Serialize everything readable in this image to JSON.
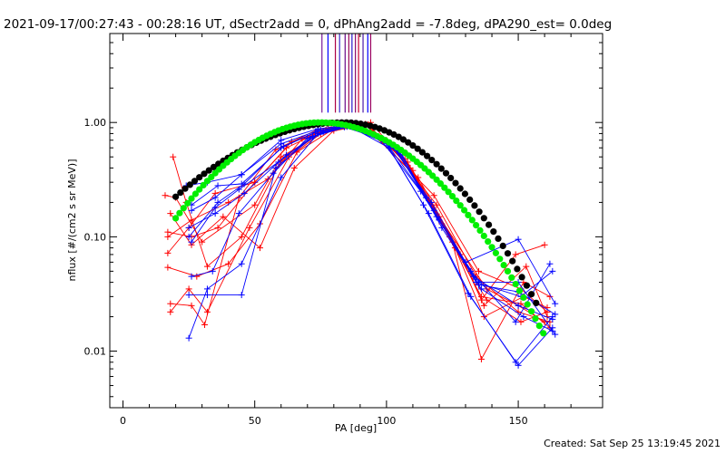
{
  "chart_data": {
    "type": "scatter",
    "title": "2021-09-17/00:27:43 - 00:28:16 UT, dSectr2add = 0, dPhAng2add = -7.8deg, dPA290_est=  0.0deg",
    "xlabel": "PA [deg]",
    "ylabel": "nflux [#/(cm2 s sr MeV)]",
    "xlim": [
      -5,
      182
    ],
    "ylim": [
      0.0032,
      6.0
    ],
    "yscale": "log",
    "x_ticks": [
      0,
      50,
      100,
      150
    ],
    "x_tick_labels": [
      "0",
      "50",
      "100",
      "150"
    ],
    "y_ticks": [
      0.01,
      0.1,
      1.0
    ],
    "y_tick_labels": [
      "0.01",
      "0.10",
      "1.00"
    ],
    "grid": false,
    "footer": "Created: Sat Sep 25 13:19:45 2021",
    "colors": {
      "red": "#ff0000",
      "blue": "#0000ff",
      "black": "#000000",
      "green": "#00ee00",
      "purple": "#8a0a6e"
    },
    "vertical_lines": [
      {
        "x": 75.5,
        "color": "#7a1a9a"
      },
      {
        "x": 77.8,
        "color": "#0000ff"
      },
      {
        "x": 80.6,
        "color": "#aa0044"
      },
      {
        "x": 82.2,
        "color": "#3a2aca"
      },
      {
        "x": 84.3,
        "color": "#6a0a8a"
      },
      {
        "x": 85.7,
        "color": "#9a0a5a"
      },
      {
        "x": 86.9,
        "color": "#2a1aca"
      },
      {
        "x": 88.2,
        "color": "#8a0a6a"
      },
      {
        "x": 89.4,
        "color": "#ca0030"
      },
      {
        "x": 91.1,
        "color": "#4a1aaa"
      },
      {
        "x": 92.9,
        "color": "#0000ff"
      },
      {
        "x": 94.0,
        "color": "#9a0060"
      }
    ],
    "series": [
      {
        "color": "red",
        "points": [
          [
            16,
            0.23
          ],
          [
            20,
            0.22
          ],
          [
            30,
            0.09
          ],
          [
            50,
            0.19
          ],
          [
            60,
            0.5
          ],
          [
            75,
            0.8
          ],
          [
            88,
            0.92
          ],
          [
            95,
            0.8
          ],
          [
            118,
            0.23
          ],
          [
            135,
            0.05
          ],
          [
            151,
            0.035
          ],
          [
            161,
            0.022
          ]
        ]
      },
      {
        "color": "red",
        "points": [
          [
            17,
            0.072
          ],
          [
            25,
            0.12
          ],
          [
            35,
            0.24
          ],
          [
            50,
            0.3
          ],
          [
            62,
            0.6
          ],
          [
            78,
            0.9
          ],
          [
            90,
            0.96
          ],
          [
            105,
            0.55
          ],
          [
            120,
            0.15
          ],
          [
            138,
            0.035
          ],
          [
            150,
            0.025
          ],
          [
            160,
            0.018
          ]
        ]
      },
      {
        "color": "red",
        "points": [
          [
            18,
            0.16
          ],
          [
            26,
            0.085
          ],
          [
            38,
            0.15
          ],
          [
            52,
            0.08
          ],
          [
            65,
            0.4
          ],
          [
            80,
            0.85
          ],
          [
            92,
            0.95
          ],
          [
            108,
            0.45
          ],
          [
            125,
            0.09
          ],
          [
            136,
            0.0085
          ],
          [
            152,
            0.04
          ],
          [
            162,
            0.03
          ]
        ]
      },
      {
        "color": "red",
        "points": [
          [
            17,
            0.1
          ],
          [
            26,
            0.14
          ],
          [
            40,
            0.2
          ],
          [
            55,
            0.32
          ],
          [
            68,
            0.72
          ],
          [
            82,
            0.93
          ],
          [
            94,
            1.0
          ],
          [
            110,
            0.38
          ],
          [
            128,
            0.07
          ],
          [
            137,
            0.025
          ],
          [
            153,
            0.055
          ],
          [
            161,
            0.02
          ]
        ]
      },
      {
        "color": "red",
        "points": [
          [
            17,
            0.054
          ],
          [
            28,
            0.045
          ],
          [
            40,
            0.058
          ],
          [
            52,
            0.13
          ],
          [
            66,
            0.55
          ],
          [
            80,
            0.88
          ],
          [
            91,
            0.95
          ],
          [
            112,
            0.33
          ],
          [
            130,
            0.06
          ],
          [
            136,
            0.028
          ],
          [
            149,
            0.07
          ],
          [
            160,
            0.085
          ]
        ]
      },
      {
        "color": "red",
        "points": [
          [
            19,
            0.5
          ],
          [
            24,
            0.2
          ],
          [
            32,
            0.055
          ],
          [
            45,
            0.1
          ],
          [
            60,
            0.46
          ],
          [
            75,
            0.82
          ],
          [
            87,
            0.93
          ],
          [
            100,
            0.7
          ],
          [
            119,
            0.19
          ],
          [
            134,
            0.045
          ],
          [
            150,
            0.022
          ],
          [
            162,
            0.018
          ]
        ]
      },
      {
        "color": "red",
        "points": [
          [
            18,
            0.026
          ],
          [
            26,
            0.025
          ],
          [
            31,
            0.017
          ],
          [
            44,
            0.22
          ],
          [
            58,
            0.58
          ],
          [
            74,
            0.87
          ],
          [
            89,
            0.97
          ],
          [
            103,
            0.62
          ],
          [
            121,
            0.13
          ],
          [
            136,
            0.03
          ],
          [
            151,
            0.026
          ],
          [
            162,
            0.016
          ]
        ]
      },
      {
        "color": "red",
        "points": [
          [
            18,
            0.022
          ],
          [
            25,
            0.035
          ],
          [
            32,
            0.022
          ],
          [
            48,
            0.12
          ],
          [
            63,
            0.5
          ],
          [
            77,
            0.86
          ],
          [
            92,
            0.97
          ],
          [
            107,
            0.48
          ],
          [
            124,
            0.1
          ],
          [
            138,
            0.028
          ],
          [
            151,
            0.018
          ],
          [
            161,
            0.022
          ]
        ]
      },
      {
        "color": "red",
        "points": [
          [
            17,
            0.11
          ],
          [
            26,
            0.1
          ],
          [
            36,
            0.12
          ],
          [
            50,
            0.3
          ],
          [
            64,
            0.68
          ],
          [
            79,
            0.9
          ],
          [
            93,
            0.96
          ],
          [
            109,
            0.4
          ],
          [
            126,
            0.08
          ],
          [
            137,
            0.02
          ],
          [
            152,
            0.03
          ],
          [
            161,
            0.024
          ]
        ]
      },
      {
        "color": "blue",
        "points": [
          [
            24,
            0.28
          ],
          [
            32,
            0.3
          ],
          [
            45,
            0.35
          ],
          [
            60,
            0.7
          ],
          [
            74,
            0.88
          ],
          [
            86,
            0.95
          ],
          [
            98,
            0.7
          ],
          [
            113,
            0.25
          ],
          [
            130,
            0.06
          ],
          [
            150,
            0.095
          ],
          [
            164,
            0.026
          ]
        ]
      },
      {
        "color": "blue",
        "points": [
          [
            25,
            0.013
          ],
          [
            32,
            0.035
          ],
          [
            45,
            0.058
          ],
          [
            60,
            0.33
          ],
          [
            74,
            0.8
          ],
          [
            88,
            0.94
          ],
          [
            102,
            0.63
          ],
          [
            117,
            0.2
          ],
          [
            133,
            0.045
          ],
          [
            150,
            0.025
          ],
          [
            163,
            0.019
          ]
        ]
      },
      {
        "color": "blue",
        "points": [
          [
            25,
            0.031
          ],
          [
            32,
            0.031
          ],
          [
            45,
            0.031
          ],
          [
            58,
            0.4
          ],
          [
            72,
            0.75
          ],
          [
            86,
            0.93
          ],
          [
            101,
            0.6
          ],
          [
            116,
            0.16
          ],
          [
            132,
            0.03
          ],
          [
            149,
            0.008
          ],
          [
            163,
            0.02
          ]
        ]
      },
      {
        "color": "blue",
        "points": [
          [
            26,
            0.045
          ],
          [
            34,
            0.05
          ],
          [
            44,
            0.16
          ],
          [
            57,
            0.36
          ],
          [
            70,
            0.73
          ],
          [
            84,
            0.91
          ],
          [
            99,
            0.71
          ],
          [
            114,
            0.19
          ],
          [
            131,
            0.032
          ],
          [
            150,
            0.0075
          ],
          [
            163,
            0.016
          ]
        ]
      },
      {
        "color": "blue",
        "points": [
          [
            26,
            0.09
          ],
          [
            35,
            0.18
          ],
          [
            44,
            0.26
          ],
          [
            59,
            0.45
          ],
          [
            72,
            0.76
          ],
          [
            85,
            0.92
          ],
          [
            100,
            0.66
          ],
          [
            115,
            0.22
          ],
          [
            132,
            0.05
          ],
          [
            149,
            0.018
          ],
          [
            162,
            0.058
          ]
        ]
      },
      {
        "color": "blue",
        "points": [
          [
            25,
            0.1
          ],
          [
            36,
            0.2
          ],
          [
            46,
            0.29
          ],
          [
            60,
            0.6
          ],
          [
            73,
            0.82
          ],
          [
            87,
            0.94
          ],
          [
            103,
            0.6
          ],
          [
            118,
            0.17
          ],
          [
            134,
            0.04
          ],
          [
            151,
            0.03
          ],
          [
            163,
            0.05
          ]
        ]
      },
      {
        "color": "blue",
        "points": [
          [
            26,
            0.17
          ],
          [
            35,
            0.22
          ],
          [
            45,
            0.35
          ],
          [
            60,
            0.65
          ],
          [
            74,
            0.85
          ],
          [
            88,
            0.96
          ],
          [
            104,
            0.57
          ],
          [
            119,
            0.15
          ],
          [
            135,
            0.04
          ],
          [
            150,
            0.04
          ],
          [
            164,
            0.014
          ]
        ]
      },
      {
        "color": "blue",
        "points": [
          [
            26,
            0.19
          ],
          [
            36,
            0.28
          ],
          [
            45,
            0.29
          ],
          [
            61,
            0.62
          ],
          [
            75,
            0.86
          ],
          [
            89,
            0.95
          ],
          [
            106,
            0.52
          ],
          [
            121,
            0.12
          ],
          [
            136,
            0.035
          ],
          [
            152,
            0.02
          ],
          [
            163,
            0.015
          ]
        ]
      },
      {
        "color": "blue",
        "points": [
          [
            25,
            0.12
          ],
          [
            35,
            0.16
          ],
          [
            46,
            0.24
          ],
          [
            62,
            0.52
          ],
          [
            76,
            0.83
          ],
          [
            90,
            0.95
          ],
          [
            105,
            0.55
          ],
          [
            120,
            0.14
          ],
          [
            135,
            0.038
          ],
          [
            150,
            0.033
          ],
          [
            164,
            0.021
          ]
        ]
      }
    ],
    "model_black": {
      "center": 84,
      "sigma_left": 37,
      "sigma_right": 27,
      "x_start": 20,
      "x_end": 158,
      "step": 1.8
    },
    "model_green": {
      "center": 75,
      "sigma_left": 28,
      "sigma_right": 29,
      "x_start": 20,
      "x_end": 160,
      "step": 1.5
    }
  }
}
